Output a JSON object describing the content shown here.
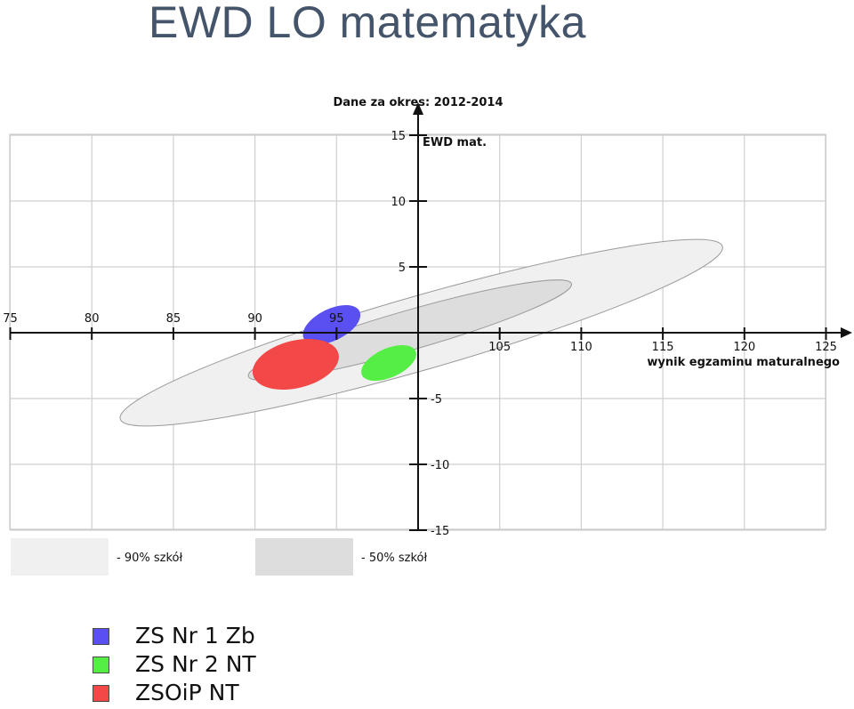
{
  "page": {
    "title": "EWD LO matematyka"
  },
  "chart_data": {
    "type": "scatter",
    "title": "Dane za okres: 2012-2014",
    "xlabel": "wynik egzaminu maturalnego",
    "ylabel": "EWD mat.",
    "xlim": [
      75,
      125
    ],
    "ylim": [
      -15,
      15
    ],
    "x_ticks": [
      75,
      80,
      85,
      90,
      95,
      100,
      105,
      110,
      115,
      120,
      125
    ],
    "x_tick_labels": [
      "75",
      "80",
      "85",
      "90",
      "95",
      "",
      "105",
      "110",
      "115",
      "120",
      "125"
    ],
    "y_ticks": [
      -15,
      -10,
      -5,
      5,
      10,
      15
    ],
    "y_tick_labels": [
      "-15",
      "-10",
      "-5",
      "5",
      "10",
      "15"
    ],
    "grid": true,
    "reference_regions": [
      {
        "label": "- 90% szkół",
        "color": "#f0f0f0",
        "center": [
          100.2,
          0.0
        ],
        "semi_x": 19.2,
        "semi_y": 2.8,
        "angle_deg": -16
      },
      {
        "label": "- 50% szkół",
        "color": "#dddddd",
        "center": [
          99.5,
          0.2
        ],
        "semi_x": 10.3,
        "semi_y": 1.5,
        "angle_deg": -16
      }
    ],
    "series": [
      {
        "name": "ZS Nr 1 Zb",
        "color": "#5a4ff0",
        "center": [
          94.7,
          0.6
        ],
        "semi_x": 1.9,
        "semi_y": 1.2,
        "angle_deg": -26
      },
      {
        "name": "ZS Nr 2 NT",
        "color": "#55ee44",
        "center": [
          98.2,
          -2.3
        ],
        "semi_x": 1.8,
        "semi_y": 1.1,
        "angle_deg": -24
      },
      {
        "name": "ZSOiP NT",
        "color": "#f24848",
        "center": [
          92.5,
          -2.4
        ],
        "semi_x": 2.7,
        "semi_y": 1.8,
        "angle_deg": -14
      }
    ]
  }
}
